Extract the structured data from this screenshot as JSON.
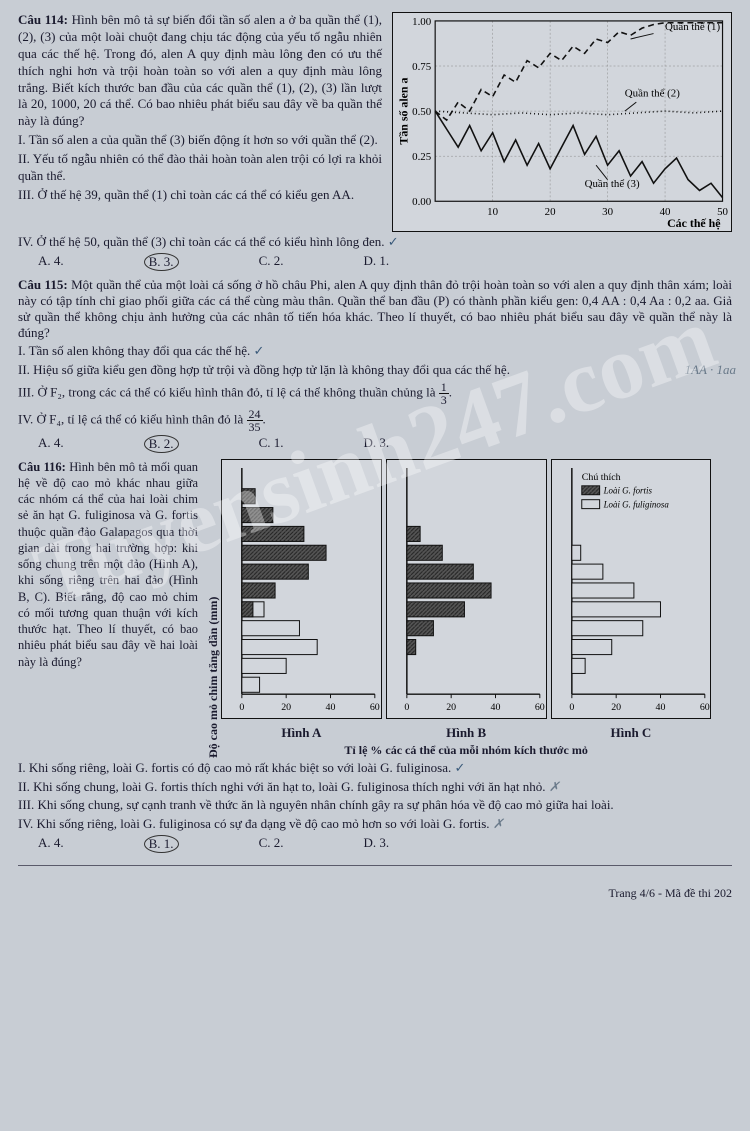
{
  "watermark": "Tuyensinh247.com",
  "q114": {
    "head": "Câu 114:",
    "text": "Hình bên mô tả sự biến đổi tần số alen a ở ba quần thể (1), (2), (3) của một loài chuột đang chịu tác động của yếu tố ngẫu nhiên qua các thế hệ. Trong đó, alen A quy định màu lông đen có ưu thế thích nghi hơn và trội hoàn toàn so với alen a quy định màu lông trắng. Biết kích thước ban đầu của các quần thể (1), (2), (3) lần lượt là 20, 1000, 20 cá thể. Có bao nhiêu phát biểu sau đây về ba quần thể này là đúng?",
    "s1": "I. Tần số alen a của quần thể (3) biến động ít hơn so với quần thể (2).",
    "s2": "II. Yếu tố ngẫu nhiên có thể đào thải hoàn toàn alen trội có lợi ra khỏi quần thể.",
    "s3": "III. Ở thế hệ 39, quần thể (1) chỉ toàn các cá thể có kiểu gen AA.",
    "s4": "IV. Ở thế hệ 50, quần thể (3) chỉ toàn các cá thể có kiểu hình lông đen.",
    "optA": "A. 4.",
    "optB": "B. 3.",
    "optC": "C. 2.",
    "optD": "D. 1.",
    "chart": {
      "type": "line",
      "ylabel": "Tần số alen a",
      "xlabel": "Các thế hệ",
      "xlim": [
        0,
        50
      ],
      "ylim": [
        0,
        1.0
      ],
      "xticks": [
        10,
        20,
        30,
        40,
        50
      ],
      "yticks": [
        0.0,
        0.25,
        0.5,
        0.75,
        1.0
      ],
      "bg": "#d2d6dc",
      "grid": "#888",
      "series": [
        {
          "label": "Quần thể (1)",
          "dash": "6,4",
          "color": "#111",
          "pts": [
            [
              0,
              0.5
            ],
            [
              2,
              0.45
            ],
            [
              4,
              0.55
            ],
            [
              6,
              0.5
            ],
            [
              8,
              0.62
            ],
            [
              10,
              0.58
            ],
            [
              12,
              0.7
            ],
            [
              14,
              0.66
            ],
            [
              16,
              0.78
            ],
            [
              18,
              0.74
            ],
            [
              20,
              0.82
            ],
            [
              22,
              0.78
            ],
            [
              24,
              0.86
            ],
            [
              26,
              0.82
            ],
            [
              28,
              0.9
            ],
            [
              30,
              0.88
            ],
            [
              32,
              0.94
            ],
            [
              34,
              0.92
            ],
            [
              36,
              0.96
            ],
            [
              38,
              0.98
            ],
            [
              40,
              0.99
            ],
            [
              45,
              0.99
            ],
            [
              50,
              0.99
            ]
          ]
        },
        {
          "label": "Quần thể (2)",
          "dash": "1,3",
          "color": "#111",
          "pts": [
            [
              0,
              0.5
            ],
            [
              5,
              0.49
            ],
            [
              10,
              0.48
            ],
            [
              15,
              0.49
            ],
            [
              20,
              0.48
            ],
            [
              25,
              0.49
            ],
            [
              30,
              0.48
            ],
            [
              35,
              0.49
            ],
            [
              40,
              0.5
            ],
            [
              45,
              0.49
            ],
            [
              50,
              0.5
            ]
          ]
        },
        {
          "label": "Quần thể (3)",
          "dash": "",
          "color": "#111",
          "pts": [
            [
              0,
              0.5
            ],
            [
              2,
              0.4
            ],
            [
              4,
              0.3
            ],
            [
              6,
              0.42
            ],
            [
              8,
              0.28
            ],
            [
              10,
              0.38
            ],
            [
              12,
              0.22
            ],
            [
              14,
              0.34
            ],
            [
              16,
              0.2
            ],
            [
              18,
              0.32
            ],
            [
              20,
              0.18
            ],
            [
              22,
              0.3
            ],
            [
              24,
              0.42
            ],
            [
              26,
              0.26
            ],
            [
              28,
              0.36
            ],
            [
              30,
              0.2
            ],
            [
              32,
              0.28
            ],
            [
              34,
              0.14
            ],
            [
              36,
              0.22
            ],
            [
              38,
              0.1
            ],
            [
              40,
              0.18
            ],
            [
              42,
              0.24
            ],
            [
              44,
              0.12
            ],
            [
              46,
              0.06
            ],
            [
              48,
              0.1
            ],
            [
              50,
              0.02
            ]
          ]
        }
      ]
    }
  },
  "q115": {
    "head": "Câu 115:",
    "text": "Một quần thể của một loài cá sống ở hồ châu Phi, alen A quy định thân đỏ trội hoàn toàn so với alen a quy định thân xám; loài này có tập tính chỉ giao phối giữa các cá thể cùng màu thân. Quần thể ban đầu (P) có thành phần kiểu gen: 0,4 AA : 0,4 Aa : 0,2 aa. Giả sử quần thể không chịu ảnh hưởng của các nhân tố tiến hóa khác. Theo lí thuyết, có bao nhiêu phát biểu sau đây về quần thể này là đúng?",
    "s1": "I. Tần số alen không thay đổi qua các thế hệ.",
    "s2": "II. Hiệu số giữa kiểu gen đồng hợp tử trội và đồng hợp tử lặn là không thay đổi qua các thế hệ.",
    "s3a": "III. Ở F₂, trong các cá thể có kiểu hình thân đỏ, tỉ lệ cá thể không thuần chủng là",
    "s3frac": {
      "num": "1",
      "den": "3"
    },
    "s4a": "IV. Ở F₄, tỉ lệ cá thể có kiểu hình thân đỏ là",
    "s4frac": {
      "num": "24",
      "den": "35"
    },
    "optA": "A. 4.",
    "optB": "B. 2.",
    "optC": "C. 1.",
    "optD": "D. 3.",
    "margin_note": "1AA · 1aa"
  },
  "q116": {
    "head": "Câu 116:",
    "text": "Hình bên mô tả mối quan hệ về độ cao mỏ khác nhau giữa các nhóm cá thể của hai loài chim sẻ ăn hạt G. fuliginosa và G. fortis thuộc quần đảo Galapagos qua thời gian dài trong hai trường hợp: khi sống chung trên một đảo (Hình A), khi sống riêng trên hai đảo (Hình B, C). Biết rằng, độ cao mỏ chim có mối tương quan thuận với kích thước hạt. Theo lí thuyết, có bao nhiêu phát biểu sau đây về hai loài này là đúng?",
    "ylabel": "Độ cao mỏ chim tăng dần (mm)",
    "xlabel": "Tỉ lệ % các cá thể của mỗi nhóm kích thước mỏ",
    "panelA": "Hình A",
    "panelB": "Hình B",
    "panelC": "Hình C",
    "legend_title": "Chú thích",
    "legend_fortis": "Loài G. fortis",
    "legend_fuliginosa": "Loài G. fuliginosa",
    "colors": {
      "fortis": "#3a3a3a",
      "fortis_pattern": true,
      "fuliginosa": "#d2d6dc",
      "border": "#111",
      "bg": "#d2d6dc"
    },
    "nlevels": 12,
    "xticks": [
      0,
      20,
      40,
      60
    ],
    "chartA": {
      "fortis": [
        0,
        0,
        0,
        0,
        5,
        15,
        30,
        38,
        28,
        14,
        6,
        0
      ],
      "fuliginosa": [
        8,
        20,
        34,
        26,
        10,
        2,
        0,
        0,
        0,
        0,
        0,
        0
      ]
    },
    "chartB": {
      "fortis": [
        0,
        0,
        4,
        12,
        26,
        38,
        30,
        16,
        6,
        0,
        0,
        0
      ],
      "fuliginosa": [
        0,
        0,
        0,
        0,
        0,
        0,
        0,
        0,
        0,
        0,
        0,
        0
      ]
    },
    "chartC": {
      "fortis": [
        0,
        0,
        0,
        0,
        0,
        0,
        0,
        0,
        0,
        0,
        0,
        0
      ],
      "fuliginosa": [
        0,
        6,
        18,
        32,
        40,
        28,
        14,
        4,
        0,
        0,
        0,
        0
      ]
    },
    "s1": "I. Khi sống riêng, loài G. fortis có độ cao mỏ rất khác biệt so với loài G. fuliginosa.",
    "s2": "II. Khi sống chung, loài G. fortis thích nghi với ăn hạt to, loài G. fuliginosa thích nghi với ăn hạt nhỏ.",
    "s3": "III. Khi sống chung, sự cạnh tranh về thức ăn là nguyên nhân chính gây ra sự phân hóa về độ cao mỏ giữa hai loài.",
    "s4": "IV. Khi sống riêng, loài G. fuliginosa có sự đa dạng về độ cao mỏ hơn so với loài G. fortis.",
    "optA": "A. 4.",
    "optB": "B. 1.",
    "optC": "C. 2.",
    "optD": "D. 3."
  },
  "footer": "Trang 4/6 - Mã đề thi 202"
}
